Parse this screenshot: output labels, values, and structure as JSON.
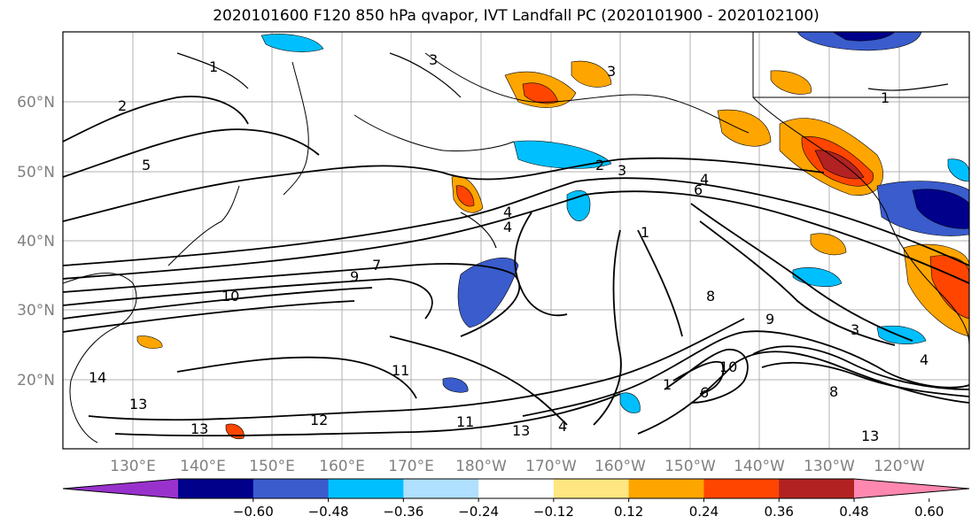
{
  "title": "2020101600 F120 850 hPa qvapor, IVT Landfall PC (2020101900 - 2020102100)",
  "map": {
    "lat_labels": [
      "60°N",
      "50°N",
      "40°N",
      "30°N",
      "20°N"
    ],
    "lon_labels": [
      "130°E",
      "140°E",
      "150°E",
      "160°E",
      "170°E",
      "180°W",
      "170°W",
      "160°W",
      "150°W",
      "140°W",
      "130°W",
      "120°W"
    ],
    "contour_labels": [
      "1",
      "2",
      "3",
      "5",
      "3",
      "1",
      "2",
      "3",
      "4",
      "6",
      "4",
      "4",
      "1",
      "9",
      "7",
      "10",
      "8",
      "9",
      "3",
      "4",
      "11",
      "14",
      "13",
      "12",
      "13",
      "11",
      "13",
      "4",
      "1",
      "6",
      "10",
      "8",
      "13"
    ]
  },
  "colorbar": {
    "ticks": [
      "−0.60",
      "−0.48",
      "−0.36",
      "−0.24",
      "−0.12",
      "0.12",
      "0.24",
      "0.36",
      "0.48",
      "0.60"
    ],
    "colors": [
      "#9932cc",
      "#00008b",
      "#3a5ccc",
      "#00bfff",
      "#b0e0ff",
      "#ffffff",
      "#ffe680",
      "#ffa500",
      "#ff4500",
      "#b22222",
      "#ff88b0"
    ]
  }
}
